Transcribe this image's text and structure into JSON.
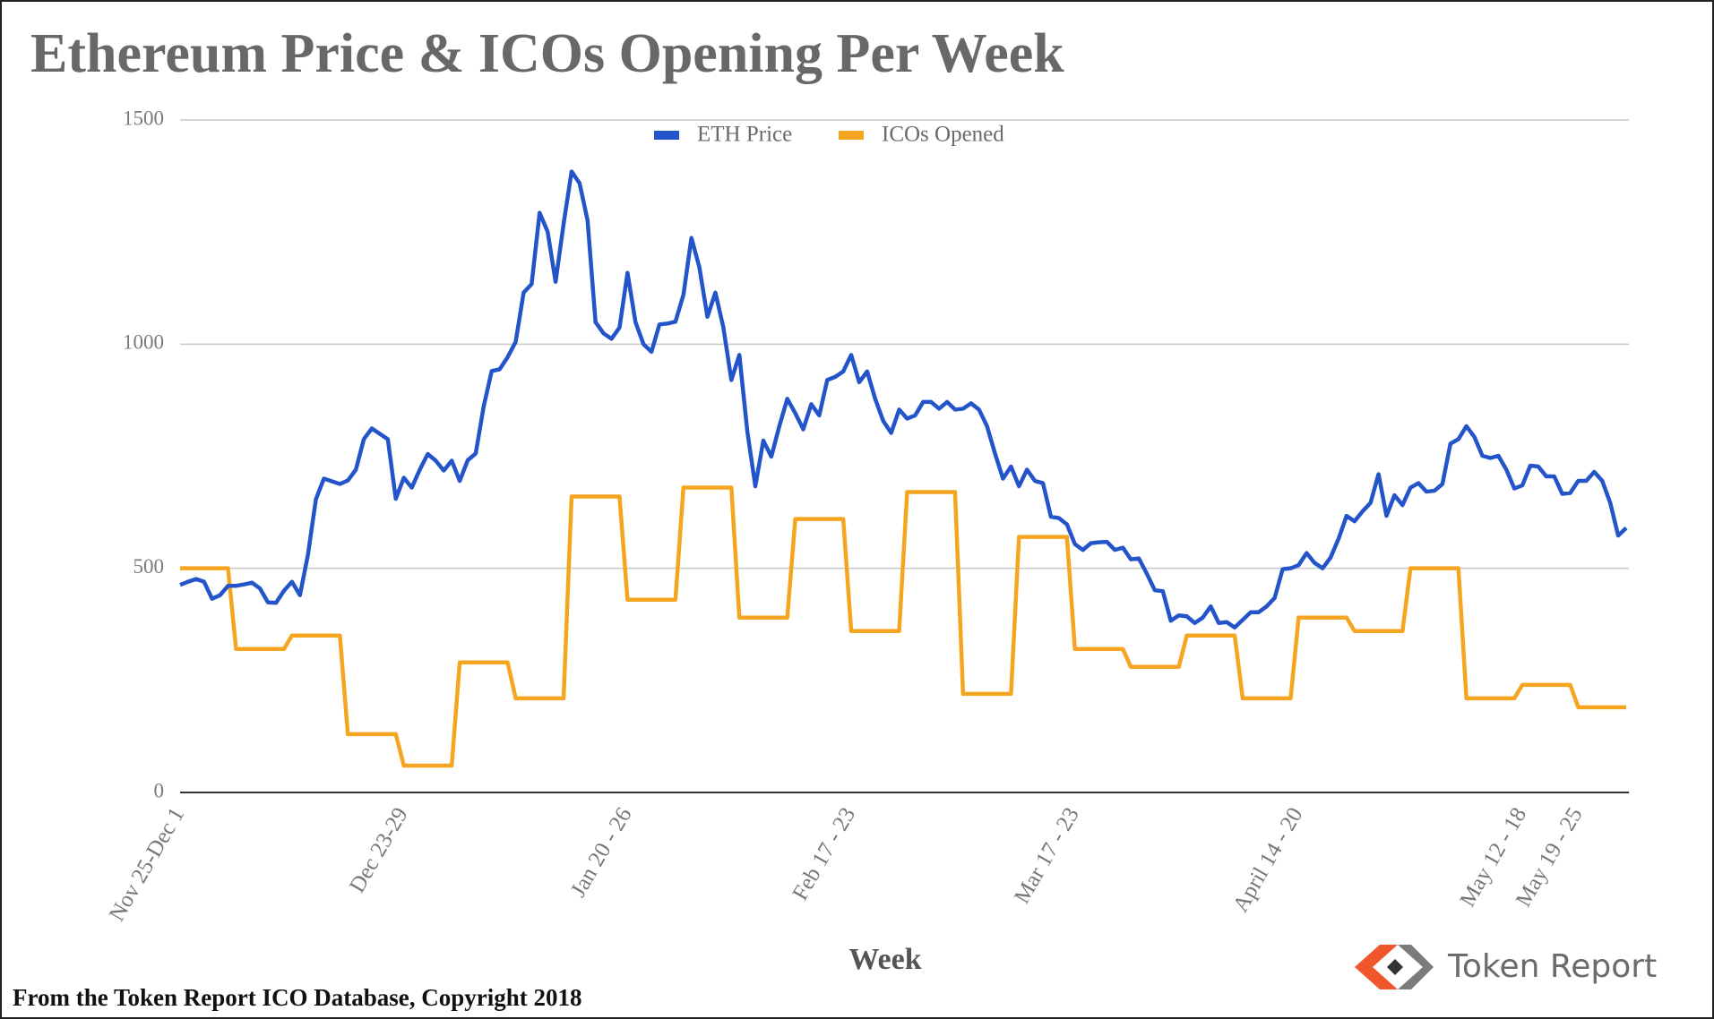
{
  "chart_data": {
    "type": "line",
    "title": "Ethereum Price & ICOs Opening Per Week",
    "x_label": "Week",
    "footer": "From the Token Report ICO Database, Copyright 2018",
    "logo_text": "Token Report",
    "categories": [
      "Nov 25-Dec 1",
      null,
      null,
      null,
      null,
      null,
      null,
      null,
      null,
      null,
      null,
      null,
      null,
      null,
      null,
      null,
      null,
      null,
      null,
      null,
      null,
      null,
      null,
      null,
      null,
      null,
      null,
      null,
      "Dec 23-29",
      null,
      null,
      null,
      null,
      null,
      null,
      null,
      null,
      null,
      null,
      null,
      null,
      null,
      null,
      null,
      null,
      null,
      null,
      null,
      null,
      null,
      null,
      null,
      null,
      null,
      null,
      null,
      "Jan 20 - 26",
      null,
      null,
      null,
      null,
      null,
      null,
      null,
      null,
      null,
      null,
      null,
      null,
      null,
      null,
      null,
      null,
      null,
      null,
      null,
      null,
      null,
      null,
      null,
      null,
      null,
      null,
      null,
      "Feb 17 - 23",
      null,
      null,
      null,
      null,
      null,
      null,
      null,
      null,
      null,
      null,
      null,
      null,
      null,
      null,
      null,
      null,
      null,
      null,
      null,
      null,
      null,
      null,
      null,
      null,
      null,
      null,
      null,
      "Mar 17 - 23",
      null,
      null,
      null,
      null,
      null,
      null,
      null,
      null,
      null,
      null,
      null,
      null,
      null,
      null,
      null,
      null,
      null,
      null,
      null,
      null,
      null,
      null,
      null,
      null,
      null,
      null,
      null,
      "April 14 - 20",
      null,
      null,
      null,
      null,
      null,
      null,
      null,
      null,
      null,
      null,
      null,
      null,
      null,
      null,
      null,
      null,
      null,
      null,
      null,
      null,
      null,
      null,
      null,
      null,
      null,
      null,
      null,
      "May 12 - 18",
      null,
      null,
      null,
      null,
      null,
      null,
      "May 19 - 25",
      null,
      null,
      null,
      null,
      null,
      null
    ],
    "series": [
      {
        "name": "ETH Price",
        "color": "#2354c9",
        "values": [
          463,
          470,
          476,
          470,
          432,
          440,
          461,
          461,
          464,
          468,
          455,
          424,
          423,
          450,
          470,
          440,
          530,
          654,
          700,
          694,
          688,
          696,
          720,
          788,
          812,
          800,
          788,
          655,
          702,
          680,
          720,
          755,
          740,
          718,
          740,
          695,
          741,
          756,
          861,
          940,
          944,
          971,
          1005,
          1115,
          1134,
          1293,
          1251,
          1139,
          1268,
          1385,
          1359,
          1276,
          1049,
          1024,
          1012,
          1037,
          1159,
          1049,
          1000,
          983,
          1044,
          1046,
          1050,
          1110,
          1237,
          1171,
          1061,
          1115,
          1037,
          920,
          976,
          805,
          683,
          785,
          749,
          817,
          878,
          846,
          810,
          866,
          841,
          920,
          927,
          939,
          976,
          915,
          939,
          878,
          829,
          802,
          854,
          834,
          841,
          871,
          871,
          856,
          871,
          854,
          856,
          868,
          854,
          817,
          756,
          700,
          727,
          683,
          720,
          695,
          690,
          615,
          612,
          598,
          554,
          541,
          556,
          558,
          559,
          541,
          546,
          520,
          522,
          488,
          451,
          449,
          383,
          395,
          393,
          378,
          390,
          415,
          378,
          380,
          368,
          385,
          402,
          402,
          415,
          434,
          498,
          500,
          507,
          534,
          512,
          500,
          524,
          566,
          617,
          605,
          627,
          646,
          710,
          617,
          663,
          641,
          680,
          690,
          671,
          673,
          688,
          778,
          788,
          817,
          793,
          751,
          746,
          751,
          720,
          678,
          685,
          729,
          727,
          705,
          705,
          666,
          668,
          695,
          695,
          715,
          695,
          646,
          573,
          590
        ]
      },
      {
        "name": "ICOs Opened",
        "color": "#f5a51f",
        "values": [
          500,
          500,
          500,
          500,
          500,
          500,
          500,
          320,
          320,
          320,
          320,
          320,
          320,
          320,
          350,
          350,
          350,
          350,
          350,
          350,
          350,
          130,
          130,
          130,
          130,
          130,
          130,
          130,
          60,
          60,
          60,
          60,
          60,
          60,
          60,
          290,
          290,
          290,
          290,
          290,
          290,
          290,
          210,
          210,
          210,
          210,
          210,
          210,
          210,
          660,
          660,
          660,
          660,
          660,
          660,
          660,
          430,
          430,
          430,
          430,
          430,
          430,
          430,
          680,
          680,
          680,
          680,
          680,
          680,
          680,
          390,
          390,
          390,
          390,
          390,
          390,
          390,
          610,
          610,
          610,
          610,
          610,
          610,
          610,
          360,
          360,
          360,
          360,
          360,
          360,
          360,
          670,
          670,
          670,
          670,
          670,
          670,
          670,
          220,
          220,
          220,
          220,
          220,
          220,
          220,
          570,
          570,
          570,
          570,
          570,
          570,
          570,
          320,
          320,
          320,
          320,
          320,
          320,
          320,
          280,
          280,
          280,
          280,
          280,
          280,
          280,
          350,
          350,
          350,
          350,
          350,
          350,
          350,
          210,
          210,
          210,
          210,
          210,
          210,
          210,
          390,
          390,
          390,
          390,
          390,
          390,
          390,
          360,
          360,
          360,
          360,
          360,
          360,
          360,
          500,
          500,
          500,
          500,
          500,
          500,
          500,
          210,
          210,
          210,
          210,
          210,
          210,
          210,
          240,
          240,
          240,
          240,
          240,
          240,
          240,
          190,
          190,
          190,
          190,
          190,
          190,
          190
        ]
      }
    ],
    "ylim": [
      0,
      1500
    ],
    "yticks": [
      0,
      500,
      1000,
      1500
    ],
    "grid": true,
    "legend": "top"
  }
}
